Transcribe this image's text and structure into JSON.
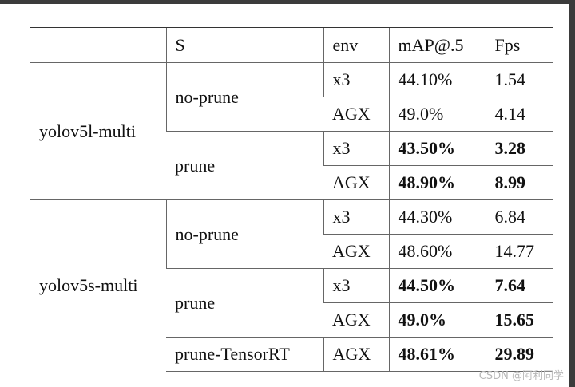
{
  "table": {
    "header": [
      "S",
      "env",
      "mAP@.5",
      "Fps"
    ],
    "groups": [
      {
        "model": "yolov5l-multi",
        "settings": [
          {
            "name": "no-prune",
            "bold": false,
            "rows": [
              {
                "env": "x3",
                "map": "44.10%",
                "fps": "1.54"
              },
              {
                "env": "AGX",
                "map": "49.0%",
                "fps": "4.14"
              }
            ]
          },
          {
            "name": "prune",
            "bold": true,
            "rows": [
              {
                "env": "x3",
                "map": "43.50%",
                "fps": "3.28"
              },
              {
                "env": "AGX",
                "map": "48.90%",
                "fps": "8.99"
              }
            ]
          }
        ]
      },
      {
        "model": "yolov5s-multi",
        "settings": [
          {
            "name": "no-prune",
            "bold": false,
            "rows": [
              {
                "env": "x3",
                "map": "44.30%",
                "fps": "6.84"
              },
              {
                "env": "AGX",
                "map": "48.60%",
                "fps": "14.77"
              }
            ]
          },
          {
            "name": "prune",
            "bold": true,
            "rows": [
              {
                "env": "x3",
                "map": "44.50%",
                "fps": "7.64"
              },
              {
                "env": "AGX",
                "map": "49.0%",
                "fps": "15.65"
              }
            ]
          },
          {
            "name": "prune-TensorRT",
            "bold": true,
            "rows": [
              {
                "env": "AGX",
                "map": "48.61%",
                "fps": "29.89"
              }
            ]
          }
        ]
      }
    ]
  },
  "watermark": "CSDN @阿利同学"
}
